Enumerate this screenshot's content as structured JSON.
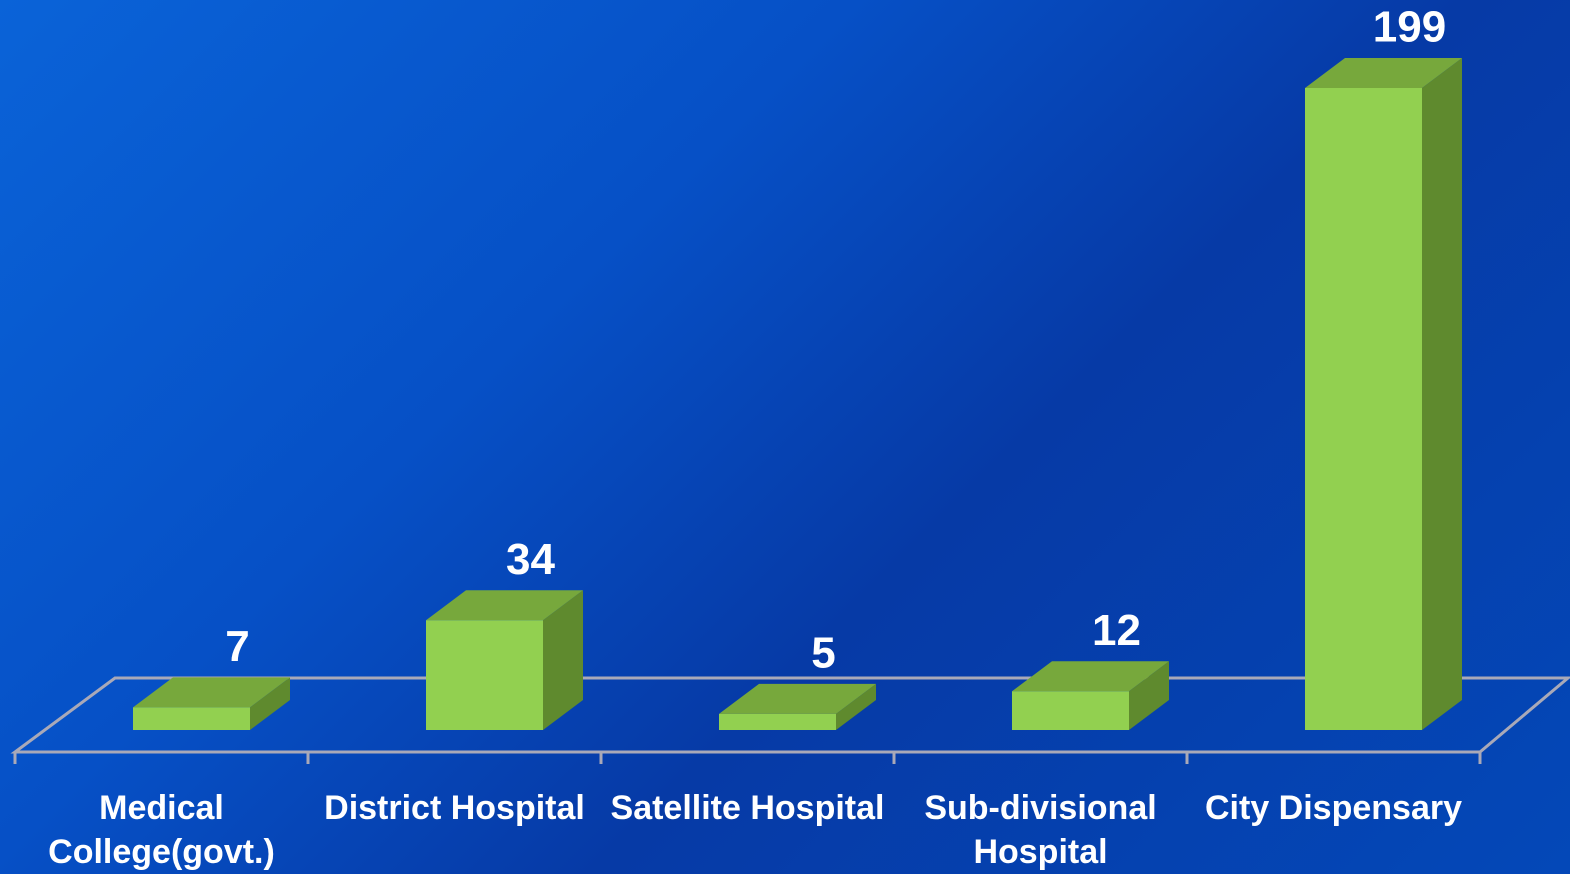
{
  "chart_data": {
    "type": "bar3d",
    "categories": [
      "Medical College(govt.)",
      "District Hospital",
      "Satellite Hospital",
      "Sub-divisional Hospital",
      "City Dispensary"
    ],
    "values": [
      7,
      34,
      5,
      12,
      199
    ],
    "color": "#92d050"
  }
}
